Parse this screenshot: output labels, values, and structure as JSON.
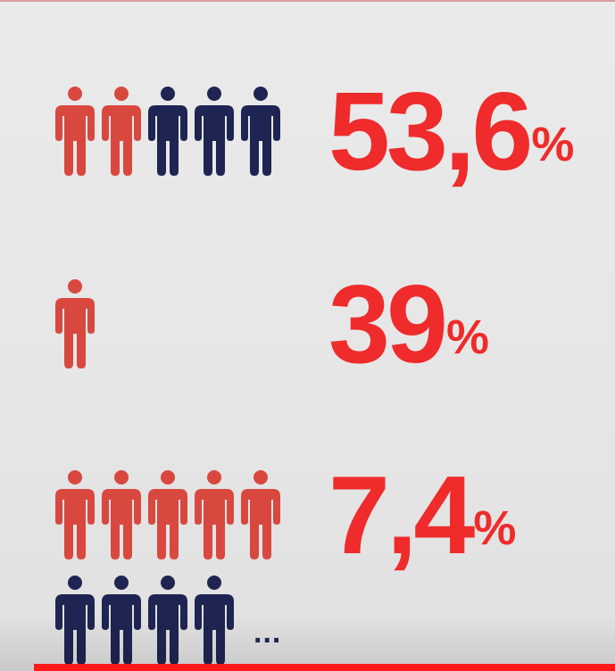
{
  "colors": {
    "red_person": "#d8483f",
    "blue_person": "#1f2552",
    "percent_text": "#ef2b2b",
    "progress": "#ff1a1a"
  },
  "rows": [
    {
      "value": "53,6",
      "unit": "%",
      "icons": [
        "red",
        "red",
        "blue",
        "blue",
        "blue"
      ]
    },
    {
      "value": "39",
      "unit": "%",
      "icons": [
        "red"
      ]
    },
    {
      "value": "7,4",
      "unit": "%",
      "icons": [
        "red",
        "red",
        "red",
        "red",
        "red"
      ],
      "icons_second_line": [
        "blue",
        "blue",
        "blue",
        "blue"
      ],
      "more": "..."
    }
  ],
  "video": {
    "progress_fraction": 1.0
  }
}
